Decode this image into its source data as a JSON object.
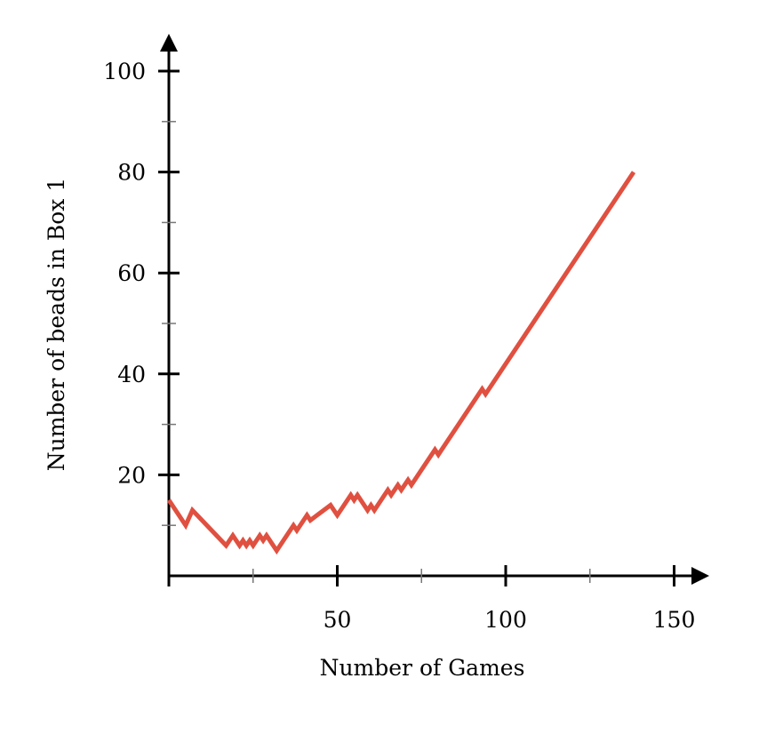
{
  "chart_data": {
    "type": "line",
    "title": "",
    "xlabel": "Number of Games",
    "ylabel": "Number of beads in Box 1",
    "xlim": [
      0,
      160
    ],
    "ylim": [
      0,
      105
    ],
    "x_ticks": [
      50,
      100,
      150
    ],
    "x_tick_labels": [
      "50",
      "100",
      "150"
    ],
    "x_minor_ticks": [
      25,
      75,
      125
    ],
    "y_ticks": [
      20,
      40,
      60,
      80,
      100
    ],
    "y_tick_labels": [
      "20",
      "40",
      "60",
      "80",
      "100"
    ],
    "y_minor_ticks": [
      10,
      30,
      50,
      70,
      90
    ],
    "grid": false,
    "series": [
      {
        "color": "#e05040",
        "x": [
          0,
          5,
          7,
          17,
          19,
          21,
          22,
          23,
          24,
          25,
          27,
          28,
          29,
          32,
          37,
          38,
          41,
          42,
          44,
          48,
          50,
          54,
          55,
          56,
          59,
          60,
          61,
          65,
          66,
          68,
          69,
          71,
          72,
          79,
          80,
          93,
          94,
          138
        ],
        "y": [
          15,
          10,
          13,
          6,
          8,
          6,
          7,
          6,
          7,
          6,
          8,
          7,
          8,
          5,
          10,
          9,
          12,
          11,
          12,
          14,
          12,
          16,
          15,
          16,
          13,
          14,
          13,
          17,
          16,
          18,
          17,
          19,
          18,
          25,
          24,
          37,
          36,
          80
        ]
      }
    ]
  }
}
